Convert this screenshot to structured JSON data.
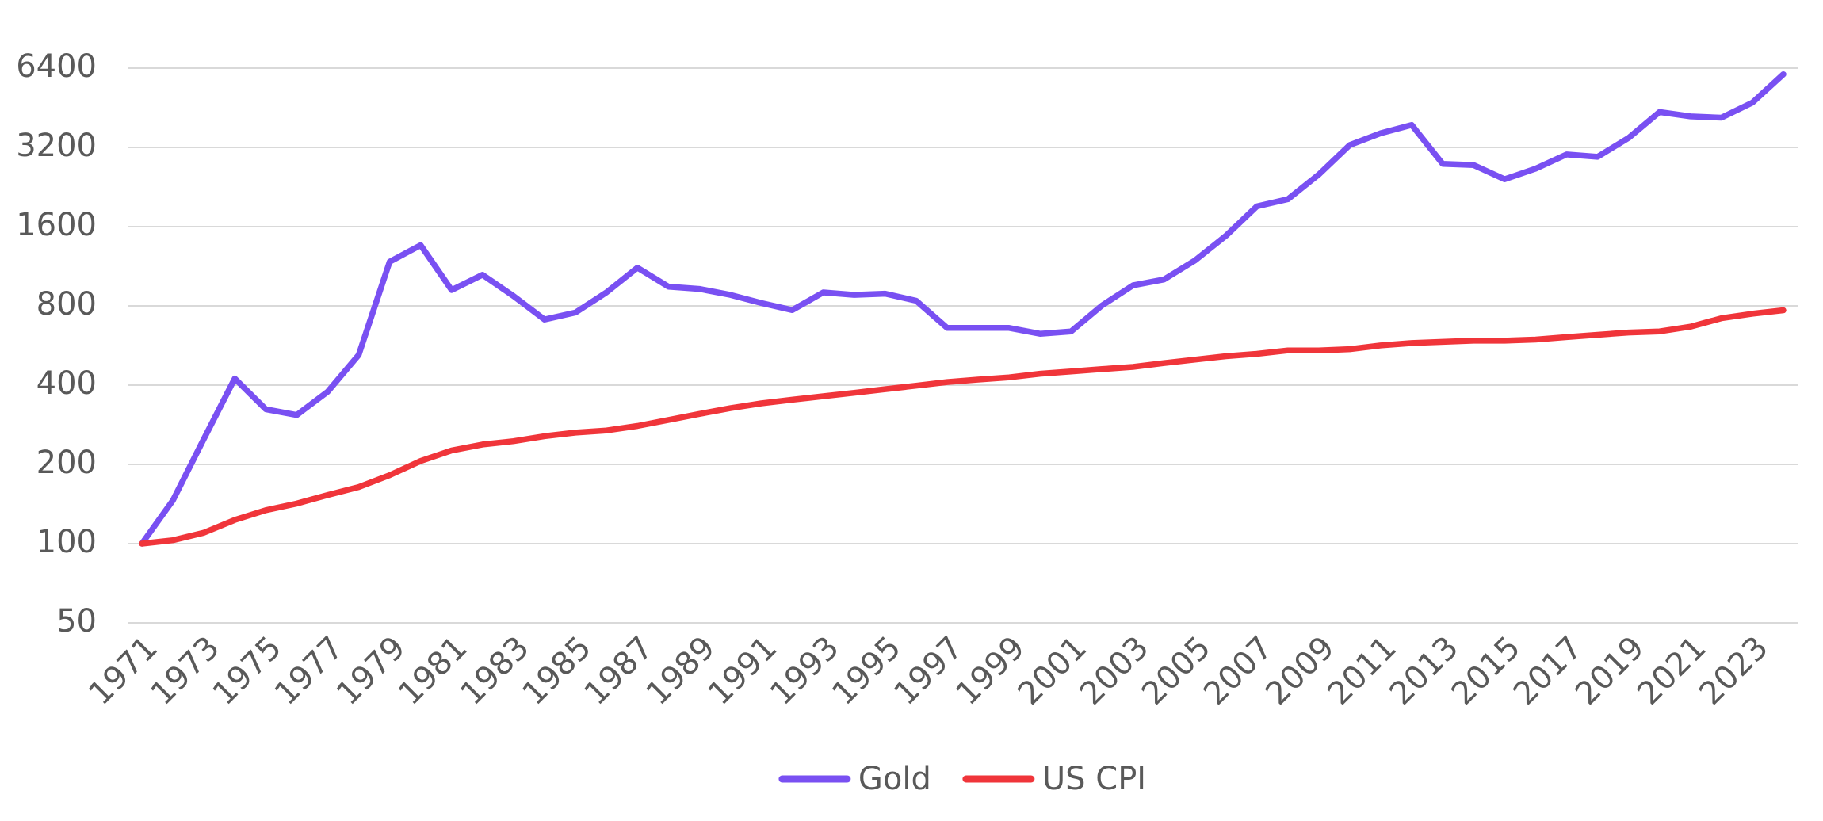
{
  "chart_data": {
    "type": "line",
    "x": [
      1971,
      1972,
      1973,
      1974,
      1975,
      1976,
      1977,
      1978,
      1979,
      1980,
      1981,
      1982,
      1983,
      1984,
      1985,
      1986,
      1987,
      1988,
      1989,
      1990,
      1991,
      1992,
      1993,
      1994,
      1995,
      1996,
      1997,
      1998,
      1999,
      2000,
      2001,
      2002,
      2003,
      2004,
      2005,
      2006,
      2007,
      2008,
      2009,
      2010,
      2011,
      2012,
      2013,
      2014,
      2015,
      2016,
      2017,
      2018,
      2019,
      2020,
      2021,
      2022,
      2023,
      2024
    ],
    "series": [
      {
        "name": "Gold",
        "color": "#7950f2",
        "values": [
          100,
          146,
          250,
          424,
          324,
          308,
          378,
          521,
          1177,
          1360,
          919,
          1050,
          872,
          710,
          755,
          900,
          1117,
          947,
          928,
          881,
          820,
          771,
          900,
          881,
          890,
          837,
          660,
          660,
          660,
          627,
          640,
          803,
          957,
          1008,
          1190,
          1476,
          1911,
          2033,
          2525,
          3267,
          3623,
          3894,
          2770,
          2742,
          2422,
          2658,
          3008,
          2946,
          3475,
          4360,
          4195,
          4150,
          4734,
          6066
        ]
      },
      {
        "name": "US CPI",
        "color": "#f0353a",
        "values": [
          100,
          103,
          110,
          123,
          134,
          142,
          153,
          164,
          182,
          206,
          226,
          238,
          245,
          256,
          264,
          269,
          280,
          295,
          311,
          327,
          341,
          352,
          363,
          374,
          386,
          398,
          411,
          420,
          428,
          442,
          451,
          460,
          469,
          485,
          500,
          515,
          526,
          542,
          542,
          548,
          566,
          578,
          584,
          590,
          590,
          596,
          609,
          621,
          634,
          640,
          667,
          718,
          747,
          770
        ]
      }
    ],
    "xlim": [
      1971,
      2024
    ],
    "xticks": [
      1971,
      1973,
      1975,
      1977,
      1979,
      1981,
      1983,
      1985,
      1987,
      1989,
      1991,
      1993,
      1995,
      1997,
      1999,
      2001,
      2003,
      2005,
      2007,
      2009,
      2011,
      2013,
      2015,
      2017,
      2019,
      2021,
      2023
    ],
    "ylim": [
      50,
      6400
    ],
    "yticks": [
      50,
      100,
      200,
      400,
      800,
      1600,
      3200,
      6400
    ],
    "yscale": "log",
    "grid": true,
    "legend": "bottom"
  }
}
